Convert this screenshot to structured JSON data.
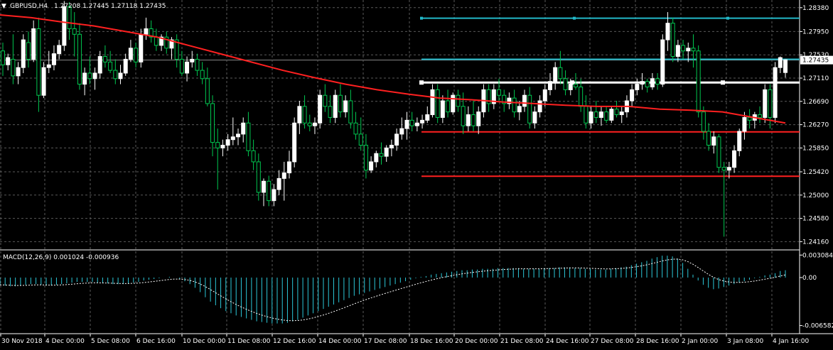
{
  "header": {
    "symbol": "GBPUSD,H4",
    "ohlc": "1.27208 1.27445 1.27118 1.27435"
  },
  "macd_panel": {
    "label": "MACD(12,26,9) 0.001024 -0.000936"
  },
  "colors": {
    "background": "#000000",
    "grid": "#5a5a5a",
    "bull": "#ffffff",
    "bear_fill": "#000000",
    "bear_border": "#00c850",
    "ma": "#ff2020",
    "cyan_lines": "#22b8c8",
    "red_levels": "#ff2020",
    "white_level": "#ffffff",
    "macd_hist": "#2cc8d8",
    "macd_signal": "#ffffff"
  },
  "chart_data": [
    {
      "type": "candlestick",
      "title": "GBPUSD,H4",
      "y_ticks": [
        "1.28380",
        "1.27950",
        "1.27530",
        "1.27110",
        "1.26690",
        "1.26270",
        "1.25850",
        "1.25420",
        "1.25000",
        "1.24580",
        "1.24160"
      ],
      "current_price": "1.27435",
      "x_labels": [
        "30 Nov 2018",
        "4 Dec 00:00",
        "5 Dec 08:00",
        "6 Dec 16:00",
        "10 Dec 00:00",
        "11 Dec 08:00",
        "12 Dec 16:00",
        "14 Dec 00:00",
        "17 Dec 08:00",
        "18 Dec 16:00",
        "20 Dec 00:00",
        "21 Dec 08:00",
        "24 Dec 16:00",
        "27 Dec 08:00",
        "28 Dec 16:00",
        "2 Jan 00:00",
        "3 Jan 08:00",
        "4 Jan 16:00"
      ],
      "ylim": [
        1.2405,
        1.2848
      ],
      "candles": [
        [
          1.276,
          1.2775,
          1.2715,
          1.2735
        ],
        [
          1.2735,
          1.2755,
          1.2725,
          1.2748
        ],
        [
          1.2745,
          1.279,
          1.27,
          1.2715
        ],
        [
          1.2715,
          1.274,
          1.27,
          1.273
        ],
        [
          1.273,
          1.279,
          1.272,
          1.278
        ],
        [
          1.2775,
          1.2795,
          1.273,
          1.2745
        ],
        [
          1.2745,
          1.2815,
          1.274,
          1.28
        ],
        [
          1.28,
          1.282,
          1.265,
          1.268
        ],
        [
          1.268,
          1.274,
          1.2675,
          1.273
        ],
        [
          1.273,
          1.276,
          1.272,
          1.2735
        ],
        [
          1.2735,
          1.277,
          1.2725,
          1.2755
        ],
        [
          1.2755,
          1.278,
          1.2745,
          1.277
        ],
        [
          1.277,
          1.285,
          1.276,
          1.284
        ],
        [
          1.284,
          1.2848,
          1.278,
          1.28
        ],
        [
          1.28,
          1.283,
          1.275,
          1.279
        ],
        [
          1.279,
          1.281,
          1.269,
          1.27
        ],
        [
          1.27,
          1.273,
          1.268,
          1.272
        ],
        [
          1.272,
          1.275,
          1.27,
          1.271
        ],
        [
          1.271,
          1.273,
          1.269,
          1.272
        ],
        [
          1.272,
          1.276,
          1.271,
          1.275
        ],
        [
          1.275,
          1.277,
          1.273,
          1.274
        ],
        [
          1.274,
          1.276,
          1.272,
          1.2725
        ],
        [
          1.2725,
          1.2745,
          1.27,
          1.271
        ],
        [
          1.271,
          1.2735,
          1.27,
          1.272
        ],
        [
          1.272,
          1.2755,
          1.2715,
          1.2745
        ],
        [
          1.2745,
          1.278,
          1.274,
          1.2765
        ],
        [
          1.2765,
          1.2775,
          1.273,
          1.274
        ],
        [
          1.274,
          1.28,
          1.273,
          1.279
        ],
        [
          1.279,
          1.282,
          1.278,
          1.28
        ],
        [
          1.28,
          1.2815,
          1.2775,
          1.2785
        ],
        [
          1.2785,
          1.28,
          1.276,
          1.277
        ],
        [
          1.277,
          1.279,
          1.276,
          1.2785
        ],
        [
          1.2785,
          1.2795,
          1.2755,
          1.2765
        ],
        [
          1.2765,
          1.2785,
          1.2745,
          1.278
        ],
        [
          1.278,
          1.279,
          1.273,
          1.2745
        ],
        [
          1.2745,
          1.276,
          1.2715,
          1.272
        ],
        [
          1.272,
          1.275,
          1.2705,
          1.274
        ],
        [
          1.274,
          1.276,
          1.273,
          1.2745
        ],
        [
          1.2745,
          1.2755,
          1.2715,
          1.2725
        ],
        [
          1.2725,
          1.274,
          1.27,
          1.271
        ],
        [
          1.271,
          1.273,
          1.266,
          1.2665
        ],
        [
          1.2665,
          1.268,
          1.257,
          1.2595
        ],
        [
          1.2595,
          1.262,
          1.251,
          1.2585
        ],
        [
          1.2585,
          1.26,
          1.257,
          1.259
        ],
        [
          1.259,
          1.261,
          1.258,
          1.26
        ],
        [
          1.26,
          1.264,
          1.259,
          1.2605
        ],
        [
          1.2605,
          1.262,
          1.259,
          1.261
        ],
        [
          1.261,
          1.264,
          1.2595,
          1.263
        ],
        [
          1.263,
          1.265,
          1.257,
          1.258
        ],
        [
          1.258,
          1.26,
          1.2545,
          1.256
        ],
        [
          1.256,
          1.2575,
          1.249,
          1.2505
        ],
        [
          1.2505,
          1.253,
          1.248,
          1.2525
        ],
        [
          1.2525,
          1.2535,
          1.248,
          1.249
        ],
        [
          1.249,
          1.252,
          1.248,
          1.251
        ],
        [
          1.251,
          1.2545,
          1.25,
          1.253
        ],
        [
          1.253,
          1.256,
          1.249,
          1.254
        ],
        [
          1.254,
          1.258,
          1.253,
          1.256
        ],
        [
          1.256,
          1.264,
          1.255,
          1.263
        ],
        [
          1.263,
          1.267,
          1.261,
          1.266
        ],
        [
          1.266,
          1.268,
          1.262,
          1.263
        ],
        [
          1.263,
          1.2645,
          1.2615,
          1.2625
        ],
        [
          1.2625,
          1.264,
          1.261,
          1.263
        ],
        [
          1.263,
          1.269,
          1.262,
          1.268
        ],
        [
          1.268,
          1.27,
          1.265,
          1.266
        ],
        [
          1.266,
          1.268,
          1.263,
          1.264
        ],
        [
          1.264,
          1.269,
          1.263,
          1.268
        ],
        [
          1.268,
          1.27,
          1.264,
          1.265
        ],
        [
          1.265,
          1.268,
          1.264,
          1.267
        ],
        [
          1.267,
          1.269,
          1.262,
          1.263
        ],
        [
          1.263,
          1.265,
          1.26,
          1.261
        ],
        [
          1.261,
          1.264,
          1.258,
          1.259
        ],
        [
          1.259,
          1.261,
          1.253,
          1.2545
        ],
        [
          1.2545,
          1.257,
          1.254,
          1.256
        ],
        [
          1.256,
          1.258,
          1.255,
          1.2575
        ],
        [
          1.2575,
          1.2595,
          1.2555,
          1.257
        ],
        [
          1.257,
          1.259,
          1.256,
          1.2585
        ],
        [
          1.2585,
          1.26,
          1.257,
          1.259
        ],
        [
          1.259,
          1.262,
          1.258,
          1.261
        ],
        [
          1.261,
          1.264,
          1.26,
          1.262
        ],
        [
          1.262,
          1.265,
          1.26,
          1.2635
        ],
        [
          1.2635,
          1.265,
          1.2615,
          1.2625
        ],
        [
          1.2625,
          1.264,
          1.2615,
          1.263
        ],
        [
          1.263,
          1.2645,
          1.262,
          1.2635
        ],
        [
          1.2635,
          1.266,
          1.263,
          1.2645
        ],
        [
          1.2645,
          1.27,
          1.264,
          1.269
        ],
        [
          1.269,
          1.27,
          1.263,
          1.264
        ],
        [
          1.264,
          1.268,
          1.263,
          1.267
        ],
        [
          1.267,
          1.269,
          1.264,
          1.265
        ],
        [
          1.265,
          1.2685,
          1.2645,
          1.268
        ],
        [
          1.268,
          1.269,
          1.265,
          1.266
        ],
        [
          1.266,
          1.2685,
          1.261,
          1.2625
        ],
        [
          1.2625,
          1.266,
          1.2615,
          1.2645
        ],
        [
          1.2645,
          1.267,
          1.2615,
          1.2625
        ],
        [
          1.2625,
          1.266,
          1.261,
          1.265
        ],
        [
          1.265,
          1.27,
          1.264,
          1.269
        ],
        [
          1.269,
          1.27,
          1.265,
          1.2665
        ],
        [
          1.2665,
          1.27,
          1.2655,
          1.269
        ],
        [
          1.269,
          1.271,
          1.267,
          1.268
        ],
        [
          1.268,
          1.269,
          1.265,
          1.2665
        ],
        [
          1.2665,
          1.2685,
          1.2655,
          1.2675
        ],
        [
          1.2675,
          1.269,
          1.264,
          1.265
        ],
        [
          1.265,
          1.267,
          1.2635,
          1.266
        ],
        [
          1.266,
          1.269,
          1.265,
          1.268
        ],
        [
          1.268,
          1.2695,
          1.262,
          1.263
        ],
        [
          1.263,
          1.266,
          1.262,
          1.265
        ],
        [
          1.265,
          1.268,
          1.264,
          1.267
        ],
        [
          1.267,
          1.27,
          1.266,
          1.269
        ],
        [
          1.269,
          1.272,
          1.268,
          1.2705
        ],
        [
          1.2705,
          1.274,
          1.269,
          1.273
        ],
        [
          1.273,
          1.276,
          1.27,
          1.271
        ],
        [
          1.271,
          1.2725,
          1.268,
          1.269
        ],
        [
          1.269,
          1.271,
          1.268,
          1.27
        ],
        [
          1.27,
          1.272,
          1.269,
          1.2695
        ],
        [
          1.2695,
          1.271,
          1.265,
          1.266
        ],
        [
          1.266,
          1.268,
          1.262,
          1.263
        ],
        [
          1.263,
          1.266,
          1.262,
          1.265
        ],
        [
          1.265,
          1.267,
          1.263,
          1.264
        ],
        [
          1.264,
          1.266,
          1.2625,
          1.265
        ],
        [
          1.265,
          1.266,
          1.263,
          1.2635
        ],
        [
          1.2635,
          1.266,
          1.263,
          1.2655
        ],
        [
          1.2655,
          1.267,
          1.264,
          1.2645
        ],
        [
          1.2645,
          1.266,
          1.263,
          1.265
        ],
        [
          1.265,
          1.268,
          1.264,
          1.267
        ],
        [
          1.267,
          1.27,
          1.266,
          1.269
        ],
        [
          1.269,
          1.271,
          1.268,
          1.27
        ],
        [
          1.27,
          1.272,
          1.269,
          1.2705
        ],
        [
          1.2705,
          1.271,
          1.2685,
          1.2695
        ],
        [
          1.2695,
          1.272,
          1.269,
          1.271
        ],
        [
          1.271,
          1.272,
          1.269,
          1.27
        ],
        [
          1.27,
          1.279,
          1.2695,
          1.278
        ],
        [
          1.278,
          1.283,
          1.276,
          1.281
        ],
        [
          1.281,
          1.282,
          1.274,
          1.275
        ],
        [
          1.275,
          1.278,
          1.274,
          1.277
        ],
        [
          1.277,
          1.278,
          1.2745,
          1.276
        ],
        [
          1.276,
          1.2775,
          1.274,
          1.2765
        ],
        [
          1.2765,
          1.279,
          1.273,
          1.276
        ],
        [
          1.276,
          1.277,
          1.264,
          1.265
        ],
        [
          1.265,
          1.266,
          1.26,
          1.2615
        ],
        [
          1.2615,
          1.263,
          1.258,
          1.259
        ],
        [
          1.259,
          1.2615,
          1.2575,
          1.2605
        ],
        [
          1.2605,
          1.261,
          1.254,
          1.255
        ],
        [
          1.255,
          1.256,
          1.2425,
          1.2545
        ],
        [
          1.2545,
          1.256,
          1.253,
          1.255
        ],
        [
          1.255,
          1.259,
          1.254,
          1.258
        ],
        [
          1.258,
          1.262,
          1.257,
          1.2615
        ],
        [
          1.2615,
          1.265,
          1.26,
          1.264
        ],
        [
          1.264,
          1.2655,
          1.262,
          1.2635
        ],
        [
          1.2635,
          1.265,
          1.262,
          1.2645
        ],
        [
          1.2645,
          1.266,
          1.263,
          1.264
        ],
        [
          1.264,
          1.27,
          1.263,
          1.269
        ],
        [
          1.269,
          1.27,
          1.262,
          1.264
        ],
        [
          1.264,
          1.274,
          1.263,
          1.273
        ],
        [
          1.273,
          1.275,
          1.272,
          1.2748
        ],
        [
          1.2721,
          1.2745,
          1.2712,
          1.2744
        ]
      ],
      "moving_average": [
        1.2825,
        1.282,
        1.2812,
        1.2805,
        1.2795,
        1.2785,
        1.277,
        1.2755,
        1.274,
        1.2725,
        1.2712,
        1.27,
        1.269,
        1.2682,
        1.2675,
        1.2672,
        1.2668,
        1.2665,
        1.2662,
        1.266,
        1.266,
        1.2655,
        1.2653,
        1.265,
        1.264,
        1.263
      ],
      "levels": {
        "cyan": [
          1.2819,
          1.2745
        ],
        "white": 1.2703,
        "red": [
          1.2614,
          1.2534
        ]
      }
    },
    {
      "type": "bar",
      "title": "MACD(12,26,9) 0.001024 -0.000936",
      "y_ticks": [
        "0.003084",
        "0.00",
        "-0.006582"
      ],
      "ylim": [
        -0.0075,
        0.0035
      ],
      "histogram": [
        -0.001,
        -0.0011,
        -0.0012,
        -0.0012,
        -0.0011,
        -0.001,
        -0.0009,
        -0.0009,
        -0.001,
        -0.0011,
        -0.0011,
        -0.001,
        -0.0009,
        -0.0008,
        -0.0007,
        -0.0006,
        -0.0006,
        -0.0006,
        -0.0006,
        -0.0007,
        -0.0008,
        -0.0008,
        -0.0009,
        -0.0009,
        -0.0009,
        -0.0008,
        -0.0007,
        -0.0006,
        -0.0004,
        -0.0003,
        -0.0002,
        -0.0001,
        0.0,
        0.0001,
        0.0,
        -0.0002,
        -0.0005,
        -0.0009,
        -0.0014,
        -0.002,
        -0.0027,
        -0.0033,
        -0.0038,
        -0.0042,
        -0.0046,
        -0.0049,
        -0.0052,
        -0.0054,
        -0.0056,
        -0.0058,
        -0.006,
        -0.0061,
        -0.0062,
        -0.0063,
        -0.0063,
        -0.0063,
        -0.0062,
        -0.006,
        -0.0058,
        -0.0055,
        -0.0052,
        -0.0049,
        -0.0046,
        -0.0043,
        -0.004,
        -0.0037,
        -0.0034,
        -0.0031,
        -0.0028,
        -0.0025,
        -0.0023,
        -0.0021,
        -0.0019,
        -0.0017,
        -0.0015,
        -0.0013,
        -0.0011,
        -0.0009,
        -0.0007,
        -0.0005,
        -0.0003,
        -0.0001,
        0.0001,
        0.0002,
        0.0004,
        0.0005,
        0.0006,
        0.0007,
        0.0008,
        0.0009,
        0.001,
        0.001,
        0.0011,
        0.0011,
        0.0012,
        0.0012,
        0.0012,
        0.0013,
        0.0013,
        0.0013,
        0.0013,
        0.0013,
        0.0012,
        0.0012,
        0.0012,
        0.0012,
        0.0013,
        0.0013,
        0.0013,
        0.0014,
        0.0014,
        0.0014,
        0.0013,
        0.0013,
        0.0012,
        0.0012,
        0.0011,
        0.0011,
        0.0011,
        0.0012,
        0.0013,
        0.0014,
        0.0015,
        0.0017,
        0.0019,
        0.0021,
        0.0023,
        0.0026,
        0.0028,
        0.003,
        0.003,
        0.0029,
        0.0026,
        0.002,
        0.0012,
        0.0004,
        -0.0004,
        -0.001,
        -0.0014,
        -0.0016,
        -0.0015,
        -0.0013,
        -0.0011,
        -0.0009,
        -0.0007,
        -0.0005,
        -0.0003,
        -0.0001,
        0.0001,
        0.0003,
        0.0004,
        0.0006,
        0.0009,
        0.001
      ]
    }
  ]
}
